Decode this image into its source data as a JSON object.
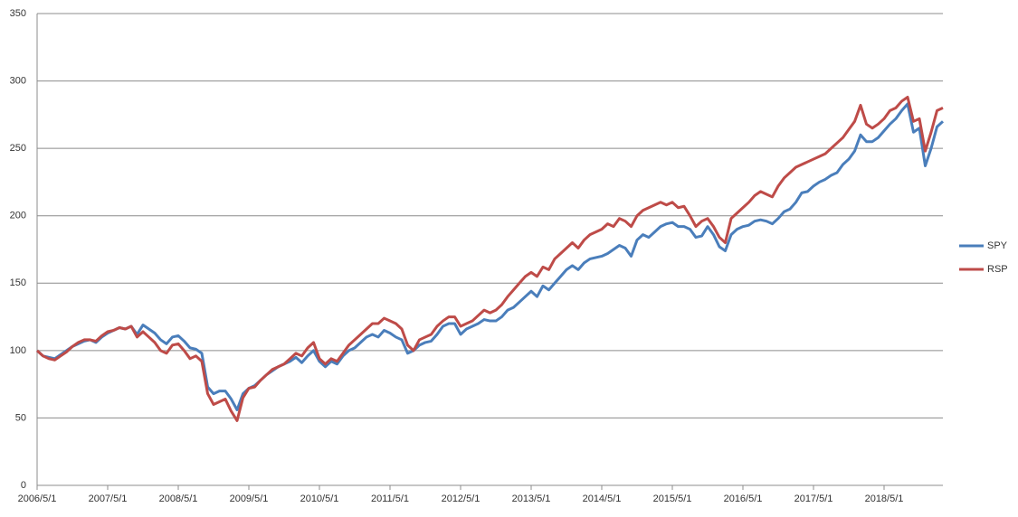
{
  "chart_data": {
    "type": "line",
    "categories": [
      "2006/5/1",
      null,
      null,
      null,
      null,
      null,
      null,
      null,
      null,
      null,
      null,
      null,
      "2007/5/1",
      null,
      null,
      null,
      null,
      null,
      null,
      null,
      null,
      null,
      null,
      null,
      "2008/5/1",
      null,
      null,
      null,
      null,
      null,
      null,
      null,
      null,
      null,
      null,
      null,
      "2009/5/1",
      null,
      null,
      null,
      null,
      null,
      null,
      null,
      null,
      null,
      null,
      null,
      "2010/5/1",
      null,
      null,
      null,
      null,
      null,
      null,
      null,
      null,
      null,
      null,
      null,
      "2011/5/1",
      null,
      null,
      null,
      null,
      null,
      null,
      null,
      null,
      null,
      null,
      null,
      "2012/5/1",
      null,
      null,
      null,
      null,
      null,
      null,
      null,
      null,
      null,
      null,
      null,
      "2013/5/1",
      null,
      null,
      null,
      null,
      null,
      null,
      null,
      null,
      null,
      null,
      null,
      "2014/5/1",
      null,
      null,
      null,
      null,
      null,
      null,
      null,
      null,
      null,
      null,
      null,
      "2015/5/1",
      null,
      null,
      null,
      null,
      null,
      null,
      null,
      null,
      null,
      null,
      null,
      "2016/5/1",
      null,
      null,
      null,
      null,
      null,
      null,
      null,
      null,
      null,
      null,
      null,
      "2017/5/1",
      null,
      null,
      null,
      null,
      null,
      null,
      null,
      null,
      null,
      null,
      null,
      "2018/5/1",
      null,
      null,
      null,
      null,
      null,
      null,
      null,
      null,
      null,
      null
    ],
    "series": [
      {
        "name": "SPY",
        "color": "#4a7ebb",
        "values": [
          100,
          96,
          95,
          94,
          97,
          100,
          103,
          105,
          107,
          108,
          106,
          110,
          113,
          115,
          117,
          116,
          118,
          112,
          119,
          116,
          113,
          108,
          105,
          110,
          111,
          107,
          102,
          101,
          98,
          73,
          68,
          70,
          70,
          64,
          56,
          68,
          72,
          74,
          78,
          82,
          85,
          88,
          90,
          92,
          95,
          91,
          96,
          100,
          92,
          88,
          92,
          90,
          96,
          100,
          102,
          106,
          110,
          112,
          110,
          115,
          113,
          110,
          108,
          98,
          100,
          104,
          106,
          107,
          112,
          118,
          120,
          120,
          112,
          116,
          118,
          120,
          123,
          122,
          122,
          125,
          130,
          132,
          136,
          140,
          144,
          140,
          148,
          145,
          150,
          155,
          160,
          163,
          160,
          165,
          168,
          169,
          170,
          172,
          175,
          178,
          176,
          170,
          182,
          186,
          184,
          188,
          192,
          194,
          195,
          192,
          192,
          190,
          184,
          185,
          192,
          186,
          177,
          174,
          186,
          190,
          192,
          193,
          196,
          197,
          196,
          194,
          198,
          203,
          205,
          210,
          217,
          218,
          222,
          225,
          227,
          230,
          232,
          238,
          242,
          248,
          260,
          255,
          255,
          258,
          263,
          268,
          272,
          278,
          283,
          262,
          265,
          237,
          250,
          266,
          270
        ]
      },
      {
        "name": "RSP",
        "color": "#be4b48",
        "values": [
          100,
          96,
          94,
          93,
          96,
          99,
          103,
          106,
          108,
          108,
          107,
          111,
          114,
          115,
          117,
          116,
          118,
          110,
          114,
          110,
          106,
          100,
          98,
          104,
          105,
          100,
          94,
          96,
          92,
          68,
          60,
          62,
          64,
          55,
          48,
          65,
          72,
          73,
          78,
          82,
          86,
          88,
          90,
          94,
          98,
          96,
          102,
          106,
          94,
          90,
          94,
          92,
          98,
          104,
          108,
          112,
          116,
          120,
          120,
          124,
          122,
          120,
          116,
          104,
          100,
          108,
          110,
          112,
          118,
          122,
          125,
          125,
          118,
          120,
          122,
          126,
          130,
          128,
          130,
          134,
          140,
          145,
          150,
          155,
          158,
          155,
          162,
          160,
          168,
          172,
          176,
          180,
          176,
          182,
          186,
          188,
          190,
          194,
          192,
          198,
          196,
          192,
          200,
          204,
          206,
          208,
          210,
          208,
          210,
          206,
          207,
          200,
          192,
          196,
          198,
          192,
          184,
          180,
          198,
          202,
          206,
          210,
          215,
          218,
          216,
          214,
          222,
          228,
          232,
          236,
          238,
          240,
          242,
          244,
          246,
          250,
          254,
          258,
          264,
          270,
          282,
          268,
          265,
          268,
          272,
          278,
          280,
          285,
          288,
          270,
          272,
          248,
          262,
          278,
          280
        ]
      }
    ],
    "ylim": [
      0,
      350
    ],
    "yticks": [
      0,
      50,
      100,
      150,
      200,
      250,
      300,
      350
    ],
    "grid": true,
    "legend": "right"
  }
}
